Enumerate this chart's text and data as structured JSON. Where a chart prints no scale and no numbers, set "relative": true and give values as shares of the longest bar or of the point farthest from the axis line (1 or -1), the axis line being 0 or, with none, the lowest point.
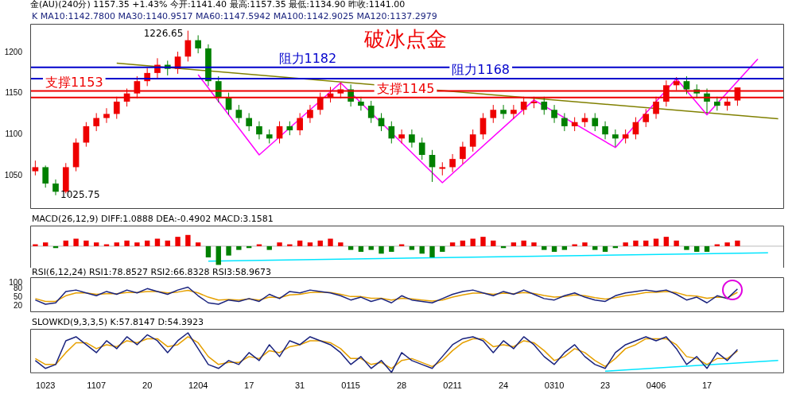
{
  "chart_data": [
    {
      "type": "candlestick",
      "title": "破冰点金",
      "annotations": [
        "金(AU)(240分) 1157.35 +1.43% 今开:1141.40 最高:1157.35 最低:1134.90 昨收:1141.00",
        "K MA10:1142.7800 MA30:1140.9517 MA60:1147.5942 MA100:1142.9025 MA120:1137.2979",
        "1226.65",
        "1025.75"
      ],
      "categories": [
        null,
        "1023",
        null,
        null,
        null,
        null,
        "1107",
        null,
        null,
        null,
        null,
        "20",
        null,
        null,
        null,
        null,
        "1204",
        null,
        null,
        null,
        null,
        "17",
        null,
        null,
        null,
        null,
        "31",
        null,
        null,
        null,
        null,
        "0115",
        null,
        null,
        null,
        null,
        "28",
        null,
        null,
        null,
        null,
        "0211",
        null,
        null,
        null,
        null,
        "24",
        null,
        null,
        null,
        null,
        "0310",
        null,
        null,
        null,
        null,
        "23",
        null,
        null,
        null,
        null,
        "0406",
        null,
        null,
        null,
        null,
        "17",
        null,
        null,
        null,
        null,
        null,
        null,
        null
      ],
      "ohlc": [
        [
          1055,
          1068,
          1050,
          1060
        ],
        [
          1060,
          1062,
          1035,
          1040
        ],
        [
          1040,
          1045,
          1025.75,
          1030
        ],
        [
          1030,
          1065,
          1028,
          1060
        ],
        [
          1060,
          1095,
          1055,
          1090
        ],
        [
          1090,
          1115,
          1085,
          1110
        ],
        [
          1110,
          1126,
          1104,
          1120
        ],
        [
          1120,
          1132,
          1114,
          1125
        ],
        [
          1125,
          1146,
          1119,
          1140
        ],
        [
          1140,
          1156,
          1134,
          1150
        ],
        [
          1150,
          1171,
          1144,
          1165
        ],
        [
          1165,
          1181,
          1159,
          1175
        ],
        [
          1175,
          1193,
          1169,
          1185
        ],
        [
          1185,
          1190,
          1172,
          1180
        ],
        [
          1180,
          1201,
          1174,
          1195
        ],
        [
          1195,
          1226.65,
          1189,
          1215
        ],
        [
          1215,
          1221,
          1199,
          1205
        ],
        [
          1205,
          1210,
          1159,
          1165
        ],
        [
          1165,
          1171,
          1139,
          1145
        ],
        [
          1145,
          1151,
          1124,
          1130
        ],
        [
          1130,
          1136,
          1114,
          1120
        ],
        [
          1120,
          1126,
          1104,
          1110
        ],
        [
          1110,
          1116,
          1094,
          1100
        ],
        [
          1100,
          1106,
          1089,
          1095
        ],
        [
          1095,
          1116,
          1089,
          1110
        ],
        [
          1110,
          1116,
          1099,
          1105
        ],
        [
          1105,
          1126,
          1099,
          1120
        ],
        [
          1120,
          1136,
          1114,
          1130
        ],
        [
          1130,
          1151,
          1124,
          1145
        ],
        [
          1145,
          1158,
          1139,
          1150
        ],
        [
          1150,
          1163,
          1144,
          1155
        ],
        [
          1155,
          1161,
          1134,
          1140
        ],
        [
          1140,
          1146,
          1129,
          1135
        ],
        [
          1135,
          1141,
          1114,
          1120
        ],
        [
          1120,
          1126,
          1104,
          1110
        ],
        [
          1110,
          1116,
          1089,
          1095
        ],
        [
          1095,
          1106,
          1089,
          1100
        ],
        [
          1100,
          1106,
          1084,
          1090
        ],
        [
          1090,
          1096,
          1069,
          1075
        ],
        [
          1075,
          1081,
          1042,
          1060
        ],
        [
          1058,
          1066,
          1050,
          1060
        ],
        [
          1060,
          1076,
          1054,
          1070
        ],
        [
          1070,
          1091,
          1064,
          1085
        ],
        [
          1085,
          1106,
          1079,
          1100
        ],
        [
          1100,
          1126,
          1094,
          1120
        ],
        [
          1120,
          1136,
          1114,
          1130
        ],
        [
          1130,
          1136,
          1119,
          1125
        ],
        [
          1125,
          1136,
          1119,
          1130
        ],
        [
          1130,
          1146,
          1124,
          1140
        ],
        [
          1138,
          1146,
          1132,
          1140
        ],
        [
          1140,
          1146,
          1124,
          1130
        ],
        [
          1130,
          1136,
          1114,
          1120
        ],
        [
          1120,
          1126,
          1104,
          1110
        ],
        [
          1110,
          1121,
          1104,
          1115
        ],
        [
          1115,
          1126,
          1109,
          1120
        ],
        [
          1120,
          1126,
          1104,
          1110
        ],
        [
          1110,
          1116,
          1094,
          1100
        ],
        [
          1100,
          1106,
          1085,
          1095
        ],
        [
          1095,
          1106,
          1089,
          1100
        ],
        [
          1100,
          1121,
          1094,
          1115
        ],
        [
          1115,
          1131,
          1109,
          1125
        ],
        [
          1125,
          1146,
          1119,
          1140
        ],
        [
          1140,
          1166,
          1134,
          1160
        ],
        [
          1160,
          1170,
          1154,
          1165
        ],
        [
          1165,
          1171,
          1149,
          1155
        ],
        [
          1155,
          1161,
          1144,
          1150
        ],
        [
          1150,
          1156,
          1126,
          1140
        ],
        [
          1140,
          1146,
          1129,
          1135
        ],
        [
          1135,
          1146,
          1129,
          1140
        ],
        [
          1141.4,
          1157.35,
          1134.9,
          1157.35
        ],
        null,
        null,
        null,
        null
      ],
      "series": [
        {
          "type": "line",
          "color": "#ff00ff",
          "values": [
            null,
            null,
            null,
            null,
            null,
            null,
            null,
            null,
            null,
            null,
            null,
            null,
            null,
            null,
            null,
            null,
            1173,
            null,
            null,
            null,
            null,
            null,
            1075,
            null,
            null,
            null,
            null,
            null,
            null,
            null,
            1163,
            null,
            null,
            null,
            null,
            null,
            null,
            null,
            null,
            null,
            1041,
            null,
            null,
            null,
            null,
            null,
            null,
            null,
            null,
            1142,
            null,
            null,
            null,
            null,
            null,
            null,
            null,
            1084,
            null,
            null,
            null,
            null,
            null,
            1168,
            null,
            null,
            1124,
            null,
            null,
            null,
            null,
            1192,
            null,
            null
          ]
        },
        {
          "type": "line",
          "color": "#808000",
          "values": [
            null,
            null,
            null,
            null,
            null,
            null,
            null,
            null,
            1187,
            null,
            null,
            null,
            null,
            null,
            null,
            null,
            null,
            null,
            null,
            null,
            null,
            null,
            null,
            null,
            null,
            null,
            null,
            null,
            null,
            null,
            null,
            null,
            null,
            null,
            null,
            null,
            null,
            null,
            null,
            null,
            null,
            null,
            null,
            null,
            null,
            null,
            null,
            null,
            null,
            null,
            null,
            null,
            null,
            null,
            null,
            null,
            null,
            null,
            null,
            null,
            null,
            null,
            null,
            null,
            null,
            null,
            null,
            null,
            null,
            null,
            null,
            null,
            null,
            1119
          ]
        }
      ],
      "ref_lines": [
        {
          "axis": "y",
          "value": 1182,
          "label": "阻力1182",
          "color": "#0000cc"
        },
        {
          "axis": "y",
          "value": 1168,
          "label": "阻力1168",
          "color": "#0000cc"
        },
        {
          "axis": "y",
          "value": 1153,
          "label": "支撑1153",
          "color": "#ee0000"
        },
        {
          "axis": "y",
          "value": 1145,
          "label": "支撑1145",
          "color": "#ee0000"
        }
      ],
      "ylim": [
        1010,
        1235
      ],
      "yticks": [
        1050,
        1100,
        1150,
        1200
      ],
      "tick_labels": "y"
    },
    {
      "type": "bar",
      "title": "MACD(26,12,9) DIFF:1.0888 DEA:-0.4902 MACD:3.1581",
      "relative": true,
      "tick_labels": false,
      "categories": [
        null,
        "1023",
        null,
        null,
        null,
        null,
        "1107",
        null,
        null,
        null,
        null,
        "20",
        null,
        null,
        null,
        null,
        "1204",
        null,
        null,
        null,
        null,
        "17",
        null,
        null,
        null,
        null,
        "31",
        null,
        null,
        null,
        null,
        "0115",
        null,
        null,
        null,
        null,
        "28",
        null,
        null,
        null,
        null,
        "0211",
        null,
        null,
        null,
        null,
        "24",
        null,
        null,
        null,
        null,
        "0310",
        null,
        null,
        null,
        null,
        "23",
        null,
        null,
        null,
        null,
        "0406",
        null,
        null,
        null,
        null,
        "17",
        null,
        null,
        null,
        null,
        null,
        null,
        null
      ],
      "series": [
        {
          "type": "bar",
          "values": [
            0.1,
            0.2,
            -0.1,
            0.3,
            0.4,
            0.3,
            0.2,
            0.1,
            0.2,
            0.3,
            0.2,
            0.3,
            0.4,
            0.3,
            0.5,
            0.6,
            0.2,
            -0.6,
            -1,
            -0.5,
            -0.2,
            -0.1,
            0.1,
            -0.2,
            0.2,
            0.1,
            0.3,
            0.2,
            0.3,
            0.4,
            0.2,
            -0.2,
            -0.3,
            -0.2,
            -0.4,
            -0.3,
            0.1,
            -0.2,
            -0.4,
            -0.6,
            -0.3,
            0.2,
            0.3,
            0.4,
            0.5,
            0.3,
            -0.1,
            0.2,
            0.3,
            0.2,
            -0.2,
            -0.3,
            -0.2,
            0.1,
            0.2,
            -0.2,
            -0.3,
            -0.1,
            0.2,
            0.3,
            0.3,
            0.4,
            0.5,
            0.3,
            -0.2,
            -0.3,
            -0.3,
            0.1,
            0.2,
            0.3,
            null,
            null,
            null,
            null
          ],
          "colors": [
            "#ee0000",
            "#ee0000",
            "#008000",
            "#ee0000",
            "#ee0000",
            "#ee0000",
            "#ee0000",
            "#ee0000",
            "#ee0000",
            "#ee0000",
            "#ee0000",
            "#ee0000",
            "#ee0000",
            "#ee0000",
            "#ee0000",
            "#ee0000",
            "#ee0000",
            "#008000",
            "#008000",
            "#008000",
            "#008000",
            "#008000",
            "#ee0000",
            "#008000",
            "#ee0000",
            "#ee0000",
            "#ee0000",
            "#ee0000",
            "#ee0000",
            "#ee0000",
            "#ee0000",
            "#008000",
            "#008000",
            "#008000",
            "#008000",
            "#008000",
            "#ee0000",
            "#008000",
            "#008000",
            "#008000",
            "#008000",
            "#ee0000",
            "#ee0000",
            "#ee0000",
            "#ee0000",
            "#ee0000",
            "#008000",
            "#ee0000",
            "#ee0000",
            "#ee0000",
            "#008000",
            "#008000",
            "#008000",
            "#ee0000",
            "#ee0000",
            "#008000",
            "#008000",
            "#008000",
            "#ee0000",
            "#ee0000",
            "#ee0000",
            "#ee0000",
            "#ee0000",
            "#ee0000",
            "#008000",
            "#008000",
            "#008000",
            "#ee0000",
            "#ee0000",
            "#ee0000",
            "#ee0000",
            "#ee0000",
            "#ee0000",
            "#ee0000"
          ]
        },
        {
          "type": "line",
          "color": "#00e5ff",
          "values": [
            null,
            null,
            null,
            null,
            null,
            null,
            null,
            null,
            null,
            null,
            null,
            null,
            null,
            null,
            null,
            null,
            null,
            -0.8,
            null,
            null,
            null,
            null,
            null,
            null,
            null,
            null,
            null,
            null,
            null,
            null,
            null,
            null,
            null,
            null,
            null,
            null,
            null,
            null,
            null,
            null,
            null,
            null,
            null,
            null,
            null,
            null,
            null,
            null,
            null,
            null,
            null,
            null,
            null,
            null,
            null,
            null,
            null,
            null,
            null,
            null,
            null,
            null,
            null,
            null,
            null,
            null,
            null,
            null,
            null,
            null,
            null,
            null,
            -0.35,
            null
          ]
        }
      ]
    },
    {
      "type": "line",
      "title": "RSI(6,12,24) RSI1:78.8527 RSI2:66.8328 RSI3:58.9673",
      "tick_labels": "y",
      "categories": [
        null,
        "1023",
        null,
        null,
        null,
        null,
        "1107",
        null,
        null,
        null,
        null,
        "20",
        null,
        null,
        null,
        null,
        "1204",
        null,
        null,
        null,
        null,
        "17",
        null,
        null,
        null,
        null,
        "31",
        null,
        null,
        null,
        null,
        "0115",
        null,
        null,
        null,
        null,
        "28",
        null,
        null,
        null,
        null,
        "0211",
        null,
        null,
        null,
        null,
        "24",
        null,
        null,
        null,
        null,
        "0310",
        null,
        null,
        null,
        null,
        "23",
        null,
        null,
        null,
        null,
        "0406",
        null,
        null,
        null,
        null,
        "17",
        null,
        null,
        null,
        null,
        null,
        null,
        null
      ],
      "ylim": [
        0,
        120
      ],
      "yticks": [
        20,
        50,
        80,
        100
      ],
      "series": [
        {
          "color": "#1a237e",
          "values": [
            40,
            25,
            30,
            70,
            75,
            65,
            55,
            70,
            60,
            75,
            65,
            80,
            70,
            60,
            75,
            85,
            55,
            30,
            25,
            40,
            35,
            45,
            35,
            60,
            45,
            70,
            65,
            75,
            70,
            65,
            55,
            40,
            50,
            35,
            45,
            30,
            55,
            40,
            35,
            30,
            45,
            60,
            70,
            75,
            65,
            55,
            70,
            60,
            75,
            60,
            45,
            40,
            55,
            65,
            50,
            40,
            35,
            55,
            65,
            70,
            75,
            70,
            75,
            60,
            40,
            50,
            30,
            55,
            45,
            79,
            null,
            null,
            null,
            null
          ]
        },
        {
          "color": "#e6a000",
          "values": [
            45,
            35,
            35,
            55,
            65,
            65,
            60,
            62,
            62,
            66,
            66,
            70,
            70,
            65,
            68,
            74,
            65,
            50,
            40,
            42,
            40,
            44,
            40,
            50,
            48,
            58,
            60,
            66,
            68,
            66,
            60,
            52,
            52,
            46,
            46,
            40,
            46,
            44,
            40,
            36,
            40,
            50,
            58,
            64,
            64,
            60,
            64,
            62,
            66,
            63,
            56,
            50,
            52,
            58,
            55,
            48,
            43,
            48,
            55,
            60,
            66,
            67,
            70,
            66,
            56,
            54,
            46,
            50,
            48,
            67,
            null,
            null,
            null,
            null
          ]
        }
      ]
    },
    {
      "type": "line",
      "title": "SLOWKD(9,3,3,5) K:57.8147 D:54.3923",
      "relative": true,
      "tick_labels": "x",
      "categories": [
        null,
        "1023",
        null,
        null,
        null,
        null,
        "1107",
        null,
        null,
        null,
        null,
        "20",
        null,
        null,
        null,
        null,
        "1204",
        null,
        null,
        null,
        null,
        "17",
        null,
        null,
        null,
        null,
        "31",
        null,
        null,
        null,
        null,
        "0115",
        null,
        null,
        null,
        null,
        "28",
        null,
        null,
        null,
        null,
        "0211",
        null,
        null,
        null,
        null,
        "24",
        null,
        null,
        null,
        null,
        "0310",
        null,
        null,
        null,
        null,
        "23",
        null,
        null,
        null,
        null,
        "0406",
        null,
        null,
        null,
        null,
        "17",
        null,
        null,
        null,
        null,
        null,
        null,
        null
      ],
      "series": [
        {
          "color": "#1a237e",
          "values": [
            0.3,
            0.1,
            0.2,
            0.8,
            0.9,
            0.7,
            0.5,
            0.8,
            0.6,
            0.9,
            0.7,
            0.95,
            0.8,
            0.5,
            0.8,
            1,
            0.6,
            0.2,
            0.1,
            0.3,
            0.2,
            0.5,
            0.3,
            0.7,
            0.4,
            0.8,
            0.7,
            0.9,
            0.8,
            0.7,
            0.5,
            0.2,
            0.4,
            0.1,
            0.3,
            0,
            0.5,
            0.3,
            0.2,
            0.1,
            0.4,
            0.7,
            0.85,
            0.9,
            0.8,
            0.5,
            0.8,
            0.6,
            0.9,
            0.7,
            0.4,
            0.2,
            0.5,
            0.7,
            0.4,
            0.2,
            0.1,
            0.5,
            0.7,
            0.8,
            0.9,
            0.8,
            0.9,
            0.6,
            0.2,
            0.4,
            0.1,
            0.5,
            0.3,
            0.58,
            null,
            null,
            null,
            null
          ]
        },
        {
          "color": "#e6a000",
          "values": [
            0.35,
            0.2,
            0.2,
            0.5,
            0.75,
            0.75,
            0.6,
            0.7,
            0.65,
            0.8,
            0.75,
            0.85,
            0.85,
            0.65,
            0.7,
            0.9,
            0.75,
            0.4,
            0.2,
            0.25,
            0.25,
            0.4,
            0.35,
            0.55,
            0.5,
            0.65,
            0.7,
            0.8,
            0.8,
            0.75,
            0.6,
            0.35,
            0.35,
            0.2,
            0.25,
            0.1,
            0.3,
            0.35,
            0.25,
            0.15,
            0.3,
            0.55,
            0.75,
            0.85,
            0.85,
            0.65,
            0.7,
            0.65,
            0.8,
            0.75,
            0.55,
            0.3,
            0.4,
            0.6,
            0.5,
            0.3,
            0.15,
            0.35,
            0.6,
            0.7,
            0.85,
            0.85,
            0.85,
            0.7,
            0.4,
            0.35,
            0.2,
            0.35,
            0.35,
            0.54,
            null,
            null,
            null,
            null
          ]
        },
        {
          "color": "#00e5ff",
          "values": [
            null,
            null,
            null,
            null,
            null,
            null,
            null,
            null,
            null,
            null,
            null,
            null,
            null,
            null,
            null,
            null,
            null,
            null,
            null,
            null,
            null,
            null,
            null,
            null,
            null,
            null,
            null,
            null,
            null,
            null,
            null,
            null,
            null,
            null,
            null,
            null,
            null,
            null,
            null,
            null,
            null,
            null,
            null,
            null,
            null,
            null,
            null,
            null,
            null,
            null,
            null,
            null,
            null,
            null,
            null,
            null,
            0.03,
            null,
            null,
            null,
            null,
            null,
            null,
            null,
            null,
            null,
            null,
            null,
            null,
            null,
            null,
            null,
            null,
            0.3
          ]
        }
      ]
    }
  ]
}
